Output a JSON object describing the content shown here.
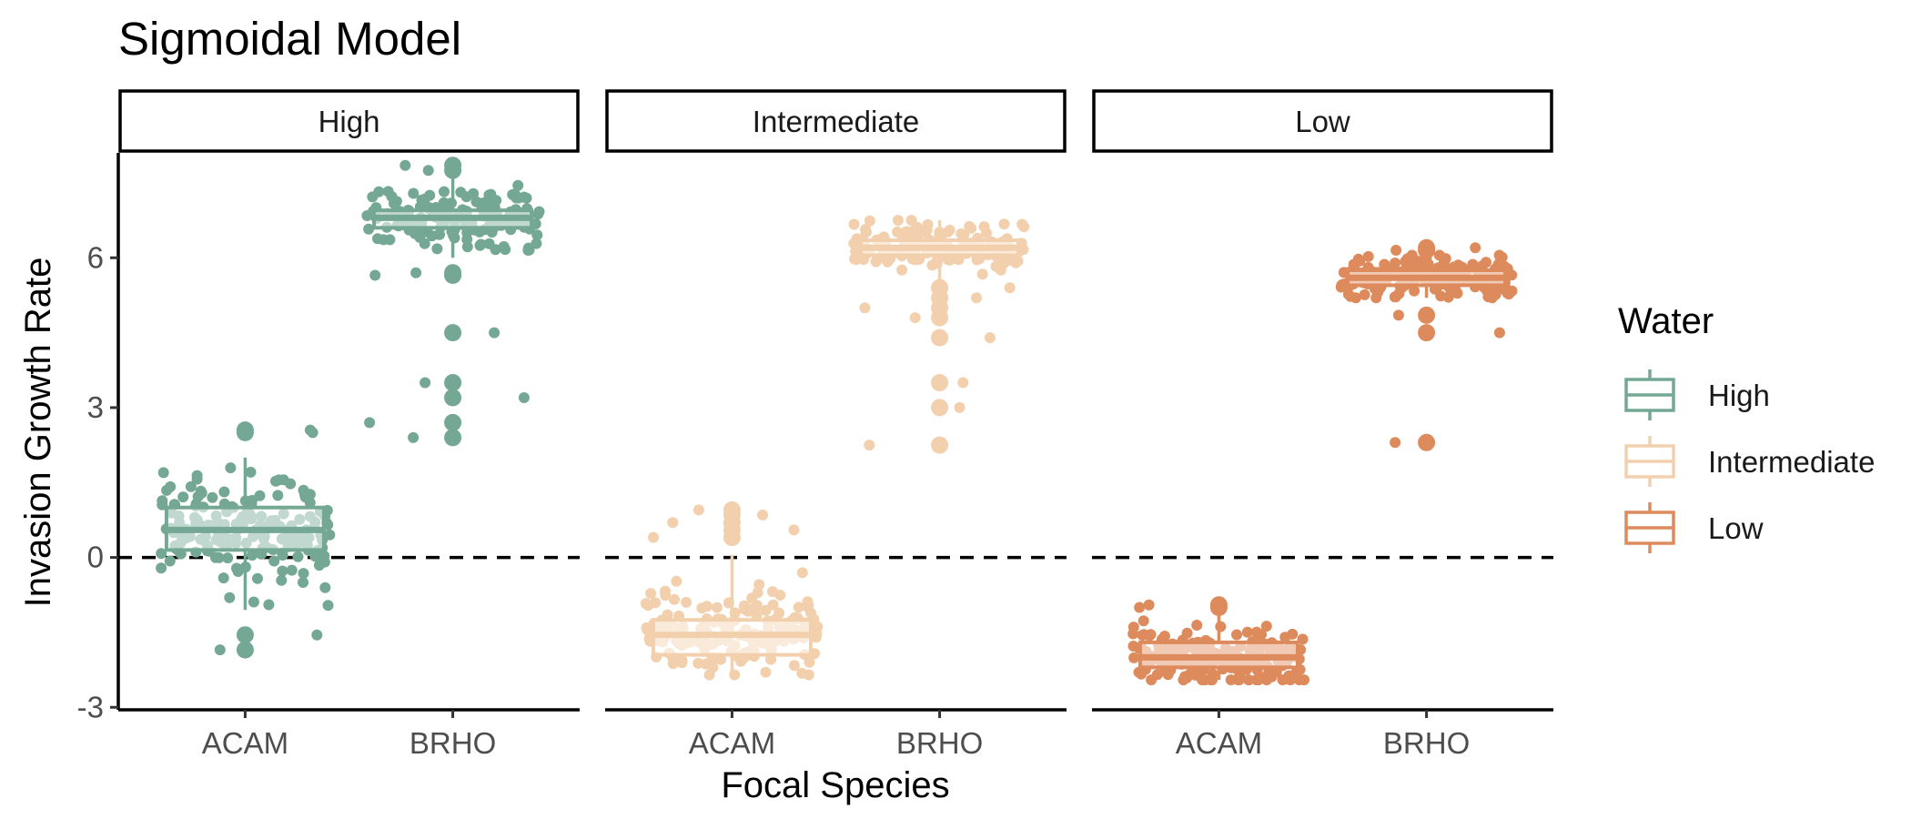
{
  "chart_data": {
    "type": "boxplot",
    "title": "Sigmoidal Model",
    "xlabel": "Focal Species",
    "ylabel": "Invasion Growth Rate",
    "facet_var": "Water",
    "facets": [
      "High",
      "Intermediate",
      "Low"
    ],
    "categories": [
      "ACAM",
      "BRHO"
    ],
    "y_ticks": [
      -3,
      0,
      3,
      6
    ],
    "ylim": [
      -3.05,
      8.1
    ],
    "reference_line": {
      "y": 0,
      "style": "dashed"
    },
    "legend": {
      "title": "Water",
      "position": "right",
      "entries": [
        "High",
        "Intermediate",
        "Low"
      ]
    },
    "colors": {
      "High": "#74a894",
      "Intermediate": "#f3d0ad",
      "Low": "#dd8b5c"
    },
    "series": [
      {
        "facet": "High",
        "boxes": [
          {
            "category": "ACAM",
            "min": -1.05,
            "q1": 0.15,
            "median": 0.55,
            "q3": 1.0,
            "max": 2.0,
            "spread": 0.55,
            "n": 180,
            "outliers": [
              2.55,
              2.5,
              -1.55,
              -1.85
            ]
          },
          {
            "category": "BRHO",
            "min": 6.0,
            "q1": 6.6,
            "median": 6.8,
            "q3": 6.95,
            "max": 7.7,
            "spread": 0.28,
            "n": 160,
            "outliers": [
              7.85,
              7.75,
              5.65,
              5.7,
              4.5,
              3.5,
              3.2,
              2.7,
              2.4
            ]
          }
        ]
      },
      {
        "facet": "Intermediate",
        "boxes": [
          {
            "category": "ACAM",
            "min": -2.35,
            "q1": -1.95,
            "median": -1.55,
            "q3": -1.25,
            "max": 0.05,
            "spread": 0.38,
            "n": 170,
            "outliers": [
              0.95,
              0.85,
              0.7,
              0.55,
              0.4
            ]
          },
          {
            "category": "BRHO",
            "min": 5.55,
            "q1": 6.05,
            "median": 6.2,
            "q3": 6.35,
            "max": 6.75,
            "spread": 0.22,
            "n": 160,
            "outliers": [
              5.4,
              5.2,
              5.0,
              4.8,
              4.4,
              3.5,
              3.0,
              2.25
            ]
          }
        ]
      },
      {
        "facet": "Low",
        "boxes": [
          {
            "category": "ACAM",
            "min": -2.45,
            "q1": -2.2,
            "median": -2.0,
            "q3": -1.7,
            "max": -0.95,
            "spread": 0.28,
            "n": 190,
            "outliers": [
              -0.95,
              -1.0
            ]
          },
          {
            "category": "BRHO",
            "min": 5.2,
            "q1": 5.45,
            "median": 5.6,
            "q3": 5.75,
            "max": 6.05,
            "spread": 0.2,
            "n": 180,
            "outliers": [
              6.2,
              6.15,
              4.85,
              4.5,
              2.3
            ]
          }
        ]
      }
    ]
  }
}
